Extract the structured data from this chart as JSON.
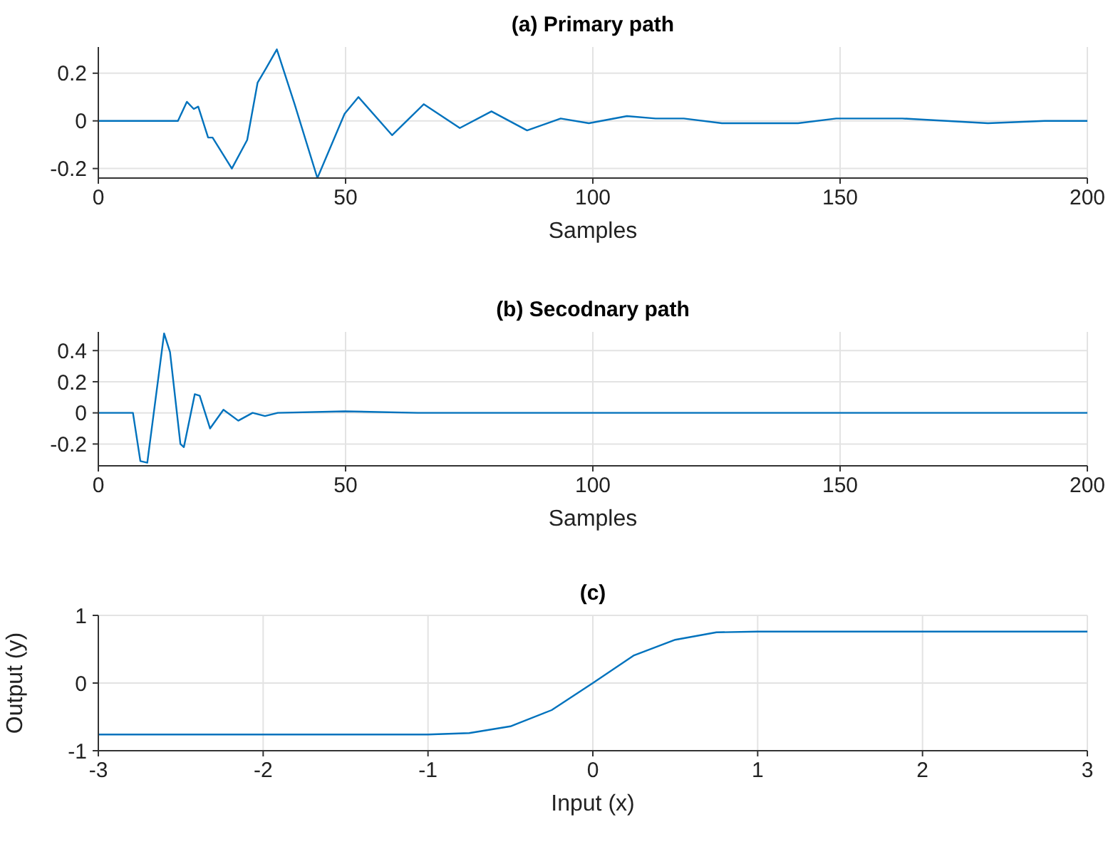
{
  "chart_data": [
    {
      "type": "line",
      "title": "(a) Primary path",
      "xlabel": "Samples",
      "xlim": [
        0,
        200
      ],
      "xticks": [
        0,
        50,
        100,
        150,
        200
      ],
      "ylim": [
        -0.24,
        0.31
      ],
      "yticks": [
        -0.2,
        0,
        0.2
      ],
      "grid": true,
      "series": [
        {
          "color": "#0072bd",
          "x": [
            0,
            16.1,
            17.9,
            19.3,
            20.2,
            22.2,
            23.1,
            27,
            30.1,
            32.2,
            33.9,
            36.1,
            39.7,
            44.3,
            49.8,
            52.6,
            59.4,
            65.8,
            73.1,
            79.5,
            86.7,
            93.5,
            99.2,
            106.9,
            112.7,
            118.4,
            126.1,
            141.5,
            149.2,
            162.6,
            179.9,
            191.4,
            199.6,
            200
          ],
          "values": [
            0,
            0,
            0.08,
            0.05,
            0.06,
            -0.07,
            -0.07,
            -0.2,
            -0.08,
            0.16,
            0.22,
            0.3,
            0.07,
            -0.24,
            0.03,
            0.1,
            -0.06,
            0.07,
            -0.03,
            0.04,
            -0.04,
            0.01,
            -0.01,
            0.02,
            0.01,
            0.01,
            -0.01,
            -0.01,
            0.01,
            0.01,
            -0.01,
            0,
            0,
            0
          ]
        }
      ]
    },
    {
      "type": "line",
      "title": "(b) Secodnary path",
      "xlabel": "Samples",
      "xlim": [
        0,
        200
      ],
      "xticks": [
        0,
        50,
        100,
        150,
        200
      ],
      "ylim": [
        -0.34,
        0.52
      ],
      "yticks": [
        -0.2,
        0,
        0.2,
        0.4
      ],
      "grid": true,
      "series": [
        {
          "color": "#0072bd",
          "x": [
            0,
            7,
            8.5,
            9.9,
            13.3,
            14.5,
            16.6,
            17.3,
            19.5,
            20.5,
            22.6,
            25.3,
            28.3,
            31.2,
            33.7,
            36.3,
            49.8,
            64.6,
            100,
            150,
            200
          ],
          "values": [
            0,
            0,
            -0.31,
            -0.32,
            0.51,
            0.39,
            -0.2,
            -0.22,
            0.12,
            0.11,
            -0.1,
            0.02,
            -0.05,
            0,
            -0.02,
            0,
            0.01,
            0,
            0,
            0,
            0
          ]
        }
      ]
    },
    {
      "type": "line",
      "title": "(c)",
      "xlabel": "Input (x)",
      "ylabel": "Output (y)",
      "xlim": [
        -3,
        3
      ],
      "xticks": [
        -3,
        -2,
        -1,
        0,
        1,
        2,
        3
      ],
      "ylim": [
        -1,
        1
      ],
      "yticks": [
        -1,
        0,
        1
      ],
      "grid": true,
      "series": [
        {
          "color": "#0072bd",
          "x": [
            -3,
            -1,
            -0.75,
            -0.5,
            -0.25,
            0,
            0.25,
            0.5,
            0.75,
            1,
            3
          ],
          "values": [
            -0.76,
            -0.76,
            -0.74,
            -0.64,
            -0.4,
            0,
            0.41,
            0.64,
            0.75,
            0.76,
            0.76
          ]
        }
      ]
    }
  ]
}
